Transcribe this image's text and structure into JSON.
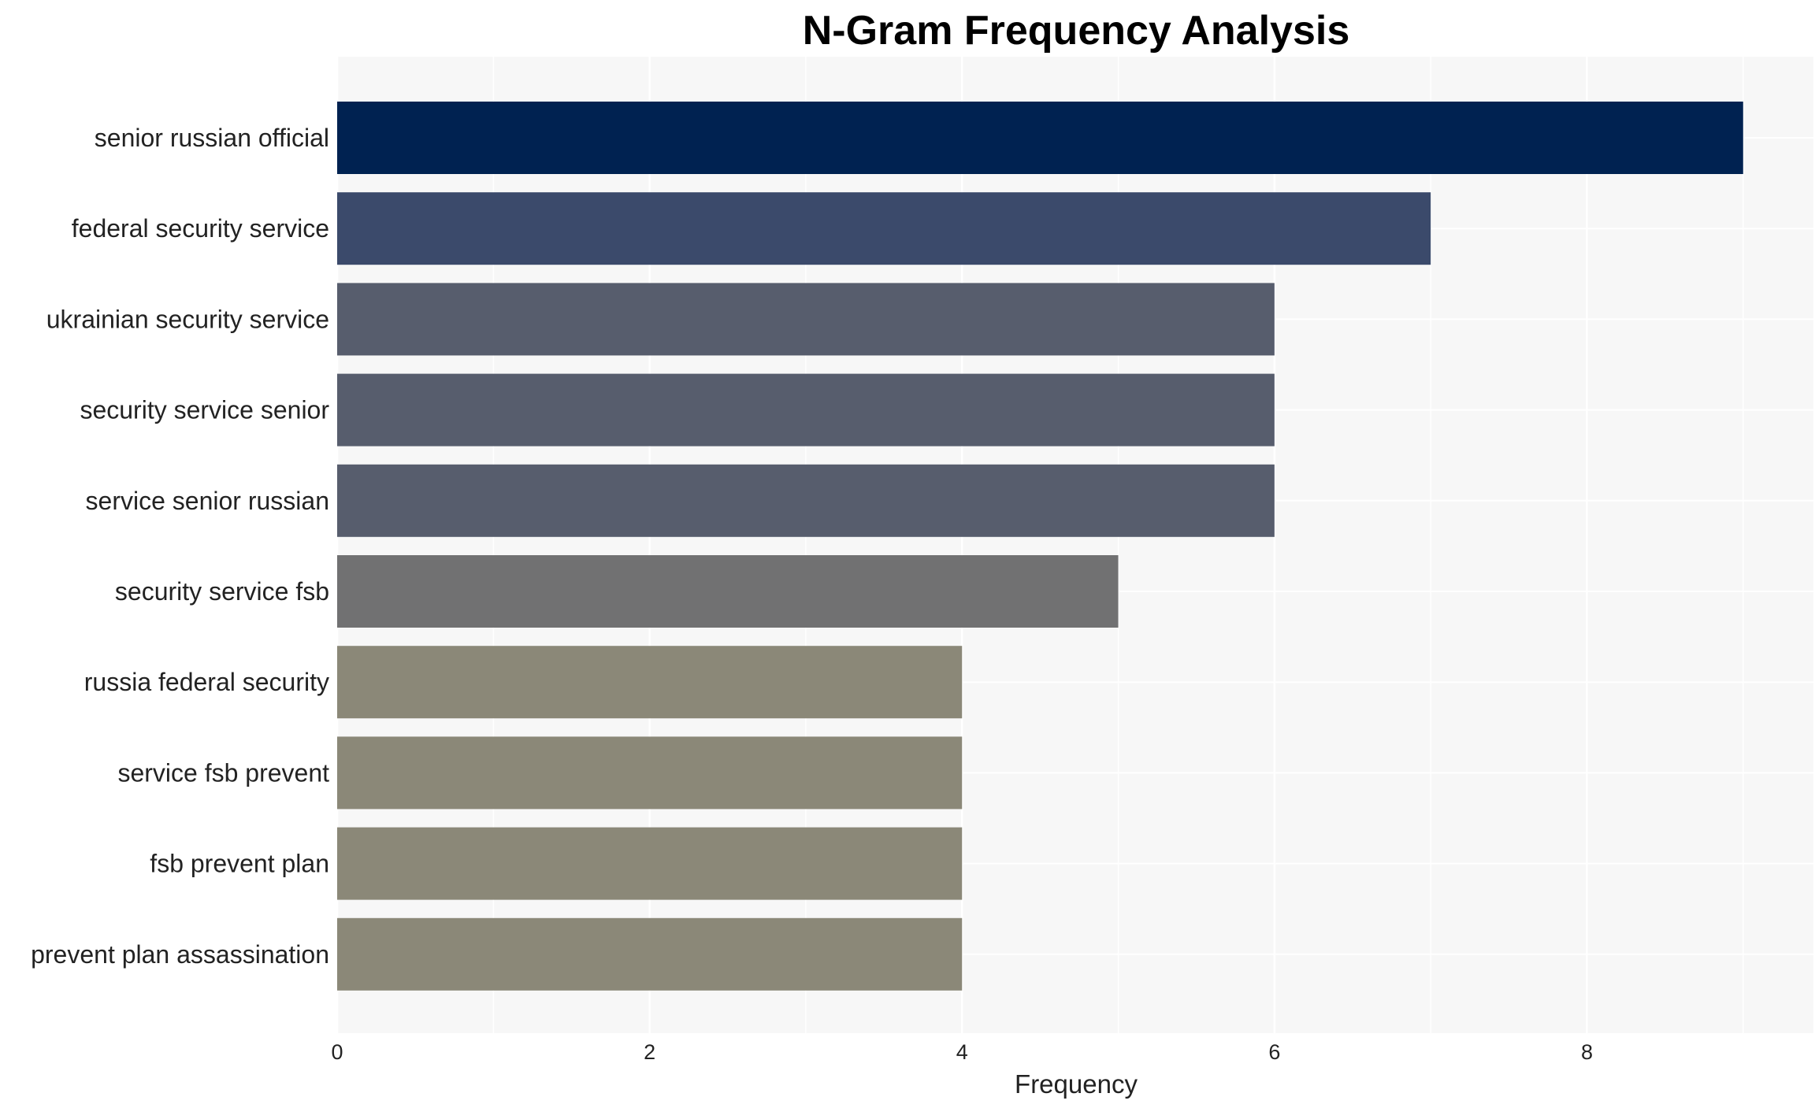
{
  "chart_data": {
    "type": "bar",
    "orientation": "horizontal",
    "title": "N-Gram Frequency Analysis",
    "xlabel": "Frequency",
    "ylabel": "",
    "xlim": [
      0,
      9.45
    ],
    "xticks": [
      0,
      2,
      4,
      6,
      8
    ],
    "grid": true,
    "categories": [
      "senior russian official",
      "federal security service",
      "ukrainian security service",
      "security service senior",
      "service senior russian",
      "security service fsb",
      "russia federal security",
      "service fsb prevent",
      "fsb prevent plan",
      "prevent plan assassination"
    ],
    "values": [
      9,
      7,
      6,
      6,
      6,
      5,
      4,
      4,
      4,
      4
    ],
    "bar_colors": [
      "#002251",
      "#3b4a6b",
      "#575d6d",
      "#575d6d",
      "#575d6d",
      "#717172",
      "#8b8878",
      "#8b8878",
      "#8b8878",
      "#8b8878"
    ],
    "plot_background": "#f7f7f7",
    "grid_color": "#ffffff"
  }
}
